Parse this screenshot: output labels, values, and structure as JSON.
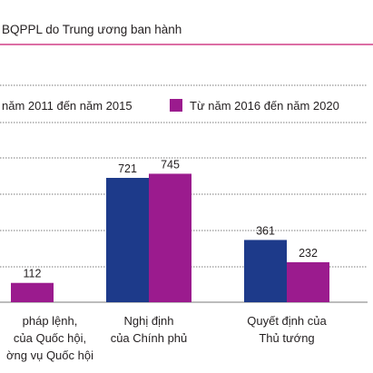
{
  "colors": {
    "series1": "#1d3a8a",
    "series2": "#9b1b8e",
    "rule": "#c8176e",
    "grid": "#4d4d4d"
  },
  "chart_data": {
    "type": "bar",
    "title": "BQPPL do Trung ương ban hành",
    "categories": [
      [
        "pháp lệnh,",
        "của Quốc hội,",
        "ờng vụ Quốc hội"
      ],
      [
        "Nghị định",
        "của Chính phủ"
      ],
      [
        "Quyết định của",
        "Thủ tướng"
      ]
    ],
    "series": [
      {
        "name": "năm 2011 đến năm 2015",
        "values": [
          null,
          721,
          361
        ]
      },
      {
        "name": "Từ năm 2016 đến năm 2020",
        "values": [
          112,
          745,
          232
        ]
      }
    ],
    "data_labels": [
      [
        "",
        "721",
        "361"
      ],
      [
        "112",
        "745",
        "232"
      ]
    ],
    "grid": true,
    "legend_position": "top"
  }
}
